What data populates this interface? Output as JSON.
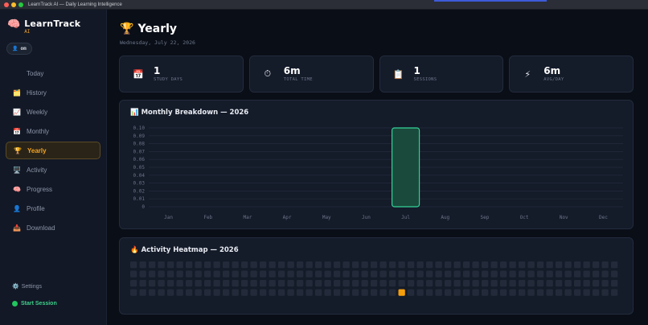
{
  "window": {
    "title": "LearnTrack AI — Daily Learning Intelligence"
  },
  "brand": {
    "icon": "brain-icon",
    "name": "LearnTrack",
    "sub": "AI"
  },
  "user": {
    "icon": "user-icon",
    "label": "om"
  },
  "nav": [
    {
      "label": "Today",
      "icon": "",
      "active": false
    },
    {
      "label": "History",
      "icon": "🗂️",
      "active": false
    },
    {
      "label": "Weekly",
      "icon": "📈",
      "active": false
    },
    {
      "label": "Monthly",
      "icon": "📅",
      "active": false
    },
    {
      "label": "Yearly",
      "icon": "🏆",
      "active": true
    },
    {
      "label": "Activity",
      "icon": "🖥️",
      "active": false
    },
    {
      "label": "Progress",
      "icon": "🧠",
      "active": false
    },
    {
      "label": "Profile",
      "icon": "👤",
      "active": false
    },
    {
      "label": "Download",
      "icon": "📥",
      "active": false
    }
  ],
  "sidebar_bottom": {
    "settings_label": "Settings",
    "start_label": "Start Session"
  },
  "page": {
    "icon": "🏆",
    "title": "Yearly",
    "date": "Wednesday, July 22, 2026"
  },
  "stats": [
    {
      "icon": "📅",
      "value": "1",
      "label": "STUDY DAYS"
    },
    {
      "icon": "⏱",
      "value": "6m",
      "label": "TOTAL TIME"
    },
    {
      "icon": "📋",
      "value": "1",
      "label": "SESSIONS"
    },
    {
      "icon": "⚡",
      "value": "6m",
      "label": "AVG/DAY"
    }
  ],
  "chart_panel": {
    "icon": "📊",
    "title": "Monthly Breakdown — 2026"
  },
  "chart_data": {
    "type": "bar",
    "categories": [
      "Jan",
      "Feb",
      "Mar",
      "Apr",
      "May",
      "Jun",
      "Jul",
      "Aug",
      "Sep",
      "Oct",
      "Nov",
      "Dec"
    ],
    "values": [
      0,
      0,
      0,
      0,
      0,
      0,
      0.1,
      0,
      0,
      0,
      0,
      0
    ],
    "ylim": [
      0,
      0.1
    ],
    "yticks": [
      "0.10",
      "0.09",
      "0.08",
      "0.07",
      "0.06",
      "0.05",
      "0.04",
      "0.03",
      "0.02",
      "0.01",
      "0"
    ],
    "grid": true,
    "bar_color": "#1a4a3c",
    "bar_border": "#34d399"
  },
  "heat_panel": {
    "icon": "🔥",
    "title": "Activity Heatmap — 2026"
  },
  "heatmap": {
    "weeks": 53,
    "days": 4,
    "active_cells": [
      {
        "week": 29,
        "day": 3
      }
    ],
    "empty_color": "#232b3a",
    "active_color": "#f59e0b"
  }
}
